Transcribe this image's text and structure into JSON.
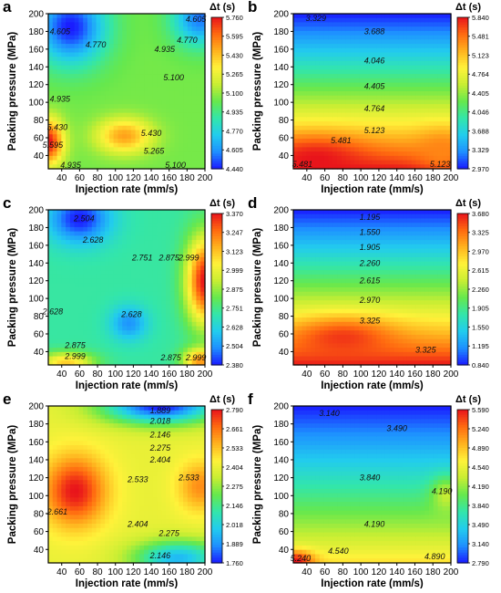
{
  "panel_label_color": "#000000",
  "colormap": [
    "#1a1aff",
    "#1e90ff",
    "#22ccee",
    "#33e6aa",
    "#66e84d",
    "#c8ee33",
    "#fff23a",
    "#ffb21e",
    "#ff6a10",
    "#e8131b"
  ],
  "chart_data": [
    {
      "panel": "a",
      "type": "heatmap",
      "xlabel": "Injection rate (mm/s)",
      "ylabel": "Packing pressure (MPa)",
      "colorbar_title": "Δt (s)",
      "xlim": [
        25,
        200
      ],
      "ylim": [
        25,
        200
      ],
      "xticks": [
        40,
        60,
        80,
        100,
        120,
        140,
        160,
        180,
        200
      ],
      "yticks": [
        40,
        60,
        80,
        100,
        120,
        140,
        160,
        180,
        200
      ],
      "zlim": [
        4.44,
        5.76
      ],
      "colorbar_ticks": [
        "5.760",
        "5.595",
        "5.430",
        "5.265",
        "5.100",
        "4.935",
        "4.770",
        "4.605",
        "4.440"
      ],
      "contour_labels": [
        {
          "text": "4.605",
          "x": 38,
          "y": 180
        },
        {
          "text": "4.770",
          "x": 78,
          "y": 165
        },
        {
          "text": "4.605",
          "x": 190,
          "y": 194
        },
        {
          "text": "4.770",
          "x": 180,
          "y": 170
        },
        {
          "text": "4.935",
          "x": 155,
          "y": 160
        },
        {
          "text": "5.100",
          "x": 165,
          "y": 128
        },
        {
          "text": "4.935",
          "x": 38,
          "y": 104
        },
        {
          "text": "5.430",
          "x": 35,
          "y": 72
        },
        {
          "text": "5.595",
          "x": 30,
          "y": 52
        },
        {
          "text": "5.430",
          "x": 140,
          "y": 65
        },
        {
          "text": "5.265",
          "x": 143,
          "y": 45
        },
        {
          "text": "4.935",
          "x": 50,
          "y": 29
        },
        {
          "text": "5.100",
          "x": 167,
          "y": 29
        }
      ],
      "peaks": [
        {
          "x": 50,
          "y": 185,
          "value": 4.44,
          "sx": 28,
          "sy": 30
        },
        {
          "x": 195,
          "y": 195,
          "value": 4.55,
          "sx": 22,
          "sy": 22
        },
        {
          "x": 110,
          "y": 62,
          "value": 5.5,
          "sx": 22,
          "sy": 14
        },
        {
          "x": 25,
          "y": 55,
          "value": 5.76,
          "sx": 12,
          "sy": 18
        }
      ],
      "base": 5.05
    },
    {
      "panel": "b",
      "type": "heatmap",
      "xlabel": "Injection rate (mm/s)",
      "ylabel": "Packing pressure (MPa)",
      "colorbar_title": "Δt (s)",
      "xlim": [
        25,
        200
      ],
      "ylim": [
        25,
        200
      ],
      "xticks": [
        40,
        60,
        80,
        100,
        120,
        140,
        160,
        180,
        200
      ],
      "yticks": [
        40,
        60,
        80,
        100,
        120,
        140,
        160,
        180,
        200
      ],
      "zlim": [
        2.97,
        5.84
      ],
      "colorbar_ticks": [
        "5.840",
        "5.481",
        "5.123",
        "4.764",
        "4.405",
        "4.046",
        "3.688",
        "3.329",
        "2.970"
      ],
      "contour_labels": [
        {
          "text": "3.329",
          "x": 50,
          "y": 195
        },
        {
          "text": "3.688",
          "x": 115,
          "y": 180
        },
        {
          "text": "4.046",
          "x": 115,
          "y": 147
        },
        {
          "text": "4.405",
          "x": 115,
          "y": 118
        },
        {
          "text": "4.764",
          "x": 115,
          "y": 93
        },
        {
          "text": "5.123",
          "x": 115,
          "y": 68
        },
        {
          "text": "5.481",
          "x": 78,
          "y": 57
        },
        {
          "text": "5.481",
          "x": 35,
          "y": 30
        },
        {
          "text": "5.123",
          "x": 188,
          "y": 30
        }
      ],
      "trend": {
        "type": "vertical",
        "z_top": 2.97,
        "z_bottom": 5.84
      },
      "peaks": [
        {
          "x": 50,
          "y": 35,
          "value": 5.84,
          "sx": 40,
          "sy": 18
        },
        {
          "x": 190,
          "y": 45,
          "value": 5.4,
          "sx": 20,
          "sy": 16
        }
      ]
    },
    {
      "panel": "c",
      "type": "heatmap",
      "xlabel": "Injection rate (mm/s)",
      "ylabel": "Packing pressure (MPa)",
      "colorbar_title": "Δt (s)",
      "xlim": [
        25,
        200
      ],
      "ylim": [
        25,
        200
      ],
      "xticks": [
        40,
        60,
        80,
        100,
        120,
        140,
        160,
        180,
        200
      ],
      "yticks": [
        40,
        60,
        80,
        100,
        120,
        140,
        160,
        180,
        200
      ],
      "zlim": [
        2.38,
        3.37
      ],
      "colorbar_ticks": [
        "3.370",
        "3.247",
        "3.123",
        "2.999",
        "2.875",
        "2.751",
        "2.628",
        "2.504",
        "2.380"
      ],
      "contour_labels": [
        {
          "text": "2.504",
          "x": 65,
          "y": 190
        },
        {
          "text": "2.628",
          "x": 75,
          "y": 166
        },
        {
          "text": "2.751",
          "x": 130,
          "y": 146
        },
        {
          "text": "2.875",
          "x": 160,
          "y": 146
        },
        {
          "text": "2.999",
          "x": 182,
          "y": 146
        },
        {
          "text": "2.628",
          "x": 30,
          "y": 85
        },
        {
          "text": "2.628",
          "x": 118,
          "y": 82
        },
        {
          "text": "2.875",
          "x": 55,
          "y": 47
        },
        {
          "text": "2.999",
          "x": 55,
          "y": 35
        },
        {
          "text": "2.875",
          "x": 162,
          "y": 33
        },
        {
          "text": "2.999",
          "x": 190,
          "y": 33
        }
      ],
      "peaks": [
        {
          "x": 60,
          "y": 190,
          "value": 2.38,
          "sx": 25,
          "sy": 20
        },
        {
          "x": 115,
          "y": 72,
          "value": 2.5,
          "sx": 15,
          "sy": 14
        },
        {
          "x": 200,
          "y": 120,
          "value": 3.37,
          "sx": 15,
          "sy": 35
        },
        {
          "x": 195,
          "y": 30,
          "value": 3.2,
          "sx": 14,
          "sy": 10
        },
        {
          "x": 45,
          "y": 28,
          "value": 3.1,
          "sx": 22,
          "sy": 8
        }
      ],
      "base": 2.72
    },
    {
      "panel": "d",
      "type": "heatmap",
      "xlabel": "Injection rate (mm/s)",
      "ylabel": "Packing pressure (MPa)",
      "colorbar_title": "Δt (s)",
      "xlim": [
        25,
        200
      ],
      "ylim": [
        25,
        200
      ],
      "xticks": [
        40,
        60,
        80,
        100,
        120,
        140,
        160,
        180,
        200
      ],
      "yticks": [
        40,
        60,
        80,
        100,
        120,
        140,
        160,
        180,
        200
      ],
      "zlim": [
        0.84,
        3.68
      ],
      "colorbar_ticks": [
        "3.680",
        "3.325",
        "2.970",
        "2.615",
        "2.260",
        "1.905",
        "1.550",
        "1.195",
        "0.840"
      ],
      "contour_labels": [
        {
          "text": "1.195",
          "x": 110,
          "y": 192
        },
        {
          "text": "1.550",
          "x": 110,
          "y": 175
        },
        {
          "text": "1.905",
          "x": 110,
          "y": 158
        },
        {
          "text": "2.260",
          "x": 110,
          "y": 140
        },
        {
          "text": "2.615",
          "x": 110,
          "y": 120
        },
        {
          "text": "2.970",
          "x": 110,
          "y": 98
        },
        {
          "text": "3.325",
          "x": 110,
          "y": 75
        },
        {
          "text": "3.325",
          "x": 172,
          "y": 42
        }
      ],
      "trend": {
        "type": "vertical",
        "z_top": 0.84,
        "z_bottom": 3.68
      },
      "peaks": [
        {
          "x": 80,
          "y": 55,
          "value": 3.55,
          "sx": 40,
          "sy": 16
        }
      ]
    },
    {
      "panel": "e",
      "type": "heatmap",
      "xlabel": "Injection rate (mm/s)",
      "ylabel": "Packing pressure (MPa)",
      "colorbar_title": "Δt (s)",
      "xlim": [
        25,
        200
      ],
      "ylim": [
        25,
        200
      ],
      "xticks": [
        40,
        60,
        80,
        100,
        120,
        140,
        160,
        180,
        200
      ],
      "yticks": [
        40,
        60,
        80,
        100,
        120,
        140,
        160,
        180,
        200
      ],
      "zlim": [
        1.76,
        2.79
      ],
      "colorbar_ticks": [
        "2.790",
        "2.661",
        "2.533",
        "2.404",
        "2.275",
        "2.146",
        "2.018",
        "1.889",
        "1.760"
      ],
      "contour_labels": [
        {
          "text": "1.889",
          "x": 150,
          "y": 195
        },
        {
          "text": "2.018",
          "x": 150,
          "y": 183
        },
        {
          "text": "2.146",
          "x": 150,
          "y": 168
        },
        {
          "text": "2.275",
          "x": 150,
          "y": 153
        },
        {
          "text": "2.404",
          "x": 150,
          "y": 140
        },
        {
          "text": "2.533",
          "x": 125,
          "y": 118
        },
        {
          "text": "2.533",
          "x": 182,
          "y": 120
        },
        {
          "text": "2.661",
          "x": 35,
          "y": 82
        },
        {
          "text": "2.404",
          "x": 125,
          "y": 68
        },
        {
          "text": "2.275",
          "x": 160,
          "y": 58
        },
        {
          "text": "2.146",
          "x": 150,
          "y": 33
        }
      ],
      "peaks": [
        {
          "x": 55,
          "y": 105,
          "value": 2.79,
          "sx": 25,
          "sy": 28
        },
        {
          "x": 195,
          "y": 110,
          "value": 2.62,
          "sx": 18,
          "sy": 20
        },
        {
          "x": 150,
          "y": 200,
          "value": 1.76,
          "sx": 45,
          "sy": 14
        },
        {
          "x": 170,
          "y": 30,
          "value": 1.95,
          "sx": 35,
          "sy": 14
        }
      ],
      "base": 2.4
    },
    {
      "panel": "f",
      "type": "heatmap",
      "xlabel": "Injection rate (mm/s)",
      "ylabel": "Packing pressure (MPa)",
      "colorbar_title": "Δt (s)",
      "xlim": [
        25,
        200
      ],
      "ylim": [
        25,
        200
      ],
      "xticks": [
        40,
        60,
        80,
        100,
        120,
        140,
        160,
        180,
        200
      ],
      "yticks": [
        40,
        60,
        80,
        100,
        120,
        140,
        160,
        180,
        200
      ],
      "zlim": [
        2.79,
        5.59
      ],
      "colorbar_ticks": [
        "5.590",
        "5.240",
        "4.890",
        "4.540",
        "4.190",
        "3.840",
        "3.490",
        "3.140",
        "2.790"
      ],
      "contour_labels": [
        {
          "text": "3.140",
          "x": 65,
          "y": 192
        },
        {
          "text": "3.490",
          "x": 140,
          "y": 175
        },
        {
          "text": "3.840",
          "x": 110,
          "y": 120
        },
        {
          "text": "4.190",
          "x": 190,
          "y": 105
        },
        {
          "text": "4.190",
          "x": 115,
          "y": 68
        },
        {
          "text": "4.540",
          "x": 75,
          "y": 38
        },
        {
          "text": "4.890",
          "x": 182,
          "y": 32
        },
        {
          "text": "5.240",
          "x": 33,
          "y": 30
        }
      ],
      "trend": {
        "type": "vertical",
        "z_top": 2.79,
        "z_bottom": 4.75
      },
      "peaks": [
        {
          "x": 28,
          "y": 27,
          "value": 5.59,
          "sx": 14,
          "sy": 8
        },
        {
          "x": 195,
          "y": 100,
          "value": 4.35,
          "sx": 12,
          "sy": 14
        }
      ]
    }
  ]
}
